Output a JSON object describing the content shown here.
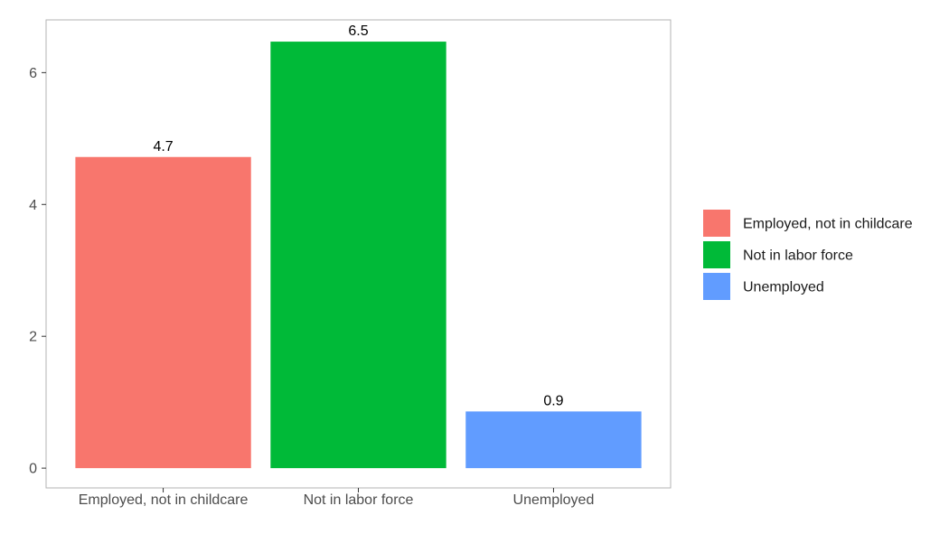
{
  "chart_data": {
    "type": "bar",
    "title": "",
    "xlabel": "",
    "ylabel": "",
    "categories": [
      "Employed, not in childcare",
      "Not in labor force",
      "Unemployed"
    ],
    "values": [
      4.72,
      6.47,
      0.86
    ],
    "data_labels": [
      "4.7",
      "6.5",
      "0.9"
    ],
    "colors": [
      "#F8766D",
      "#00BA38",
      "#619CFF"
    ],
    "ylim": [
      -0.3,
      6.8
    ],
    "yticks": [
      0,
      2,
      4,
      6
    ],
    "ytick_labels": [
      "0",
      "2",
      "4",
      "6"
    ],
    "grid": false,
    "legend": {
      "position": "right",
      "entries": [
        "Employed, not in childcare",
        "Not in labor force",
        "Unemployed"
      ]
    }
  }
}
